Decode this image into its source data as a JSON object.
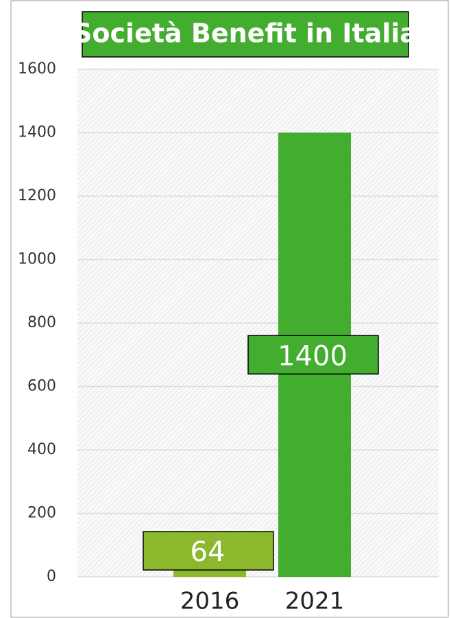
{
  "chart_data": {
    "type": "bar",
    "title": "Società Benefit in Italia",
    "categories": [
      "2016",
      "2021"
    ],
    "values": [
      64,
      1400
    ],
    "colors": [
      "#8bb82c",
      "#42ad2f"
    ],
    "ylim": [
      0,
      1600
    ],
    "yticks": [
      0,
      200,
      400,
      600,
      800,
      1000,
      1200,
      1400,
      1600
    ],
    "grid": true
  }
}
